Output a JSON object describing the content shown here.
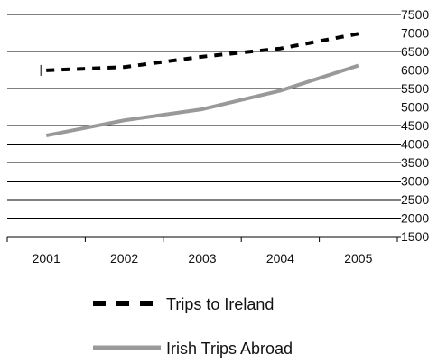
{
  "chart_data": {
    "type": "line",
    "categories": [
      "2001",
      "2002",
      "2003",
      "2004",
      "2005"
    ],
    "series": [
      {
        "name": "Trips to Ireland",
        "values": [
          5990,
          6080,
          6360,
          6580,
          6980
        ],
        "color": "#000000",
        "style": "dashed"
      },
      {
        "name": "Irish Trips Abroad",
        "values": [
          4230,
          4640,
          4940,
          5440,
          6120
        ],
        "color": "#999999",
        "style": "solid"
      }
    ],
    "ylim": [
      1500,
      7500
    ],
    "ytick_step": 500,
    "y_axis_position": "right",
    "grid": true,
    "legend_position": "bottom"
  }
}
